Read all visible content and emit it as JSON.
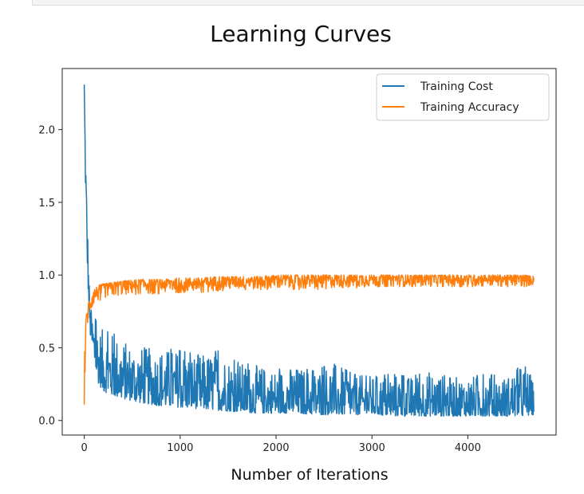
{
  "chart_data": {
    "type": "line",
    "title": "Learning Curves",
    "xlabel": "Number of Iterations",
    "ylabel": "",
    "xlim": [
      -230,
      4920
    ],
    "ylim": [
      -0.1,
      2.42
    ],
    "xticks": [
      0,
      1000,
      2000,
      3000,
      4000
    ],
    "xtick_labels": [
      "0",
      "1000",
      "2000",
      "3000",
      "4000"
    ],
    "yticks": [
      0.0,
      0.5,
      1.0,
      1.5,
      2.0
    ],
    "ytick_labels": [
      "0.0",
      "0.5",
      "1.0",
      "1.5",
      "2.0"
    ],
    "grid": false,
    "legend_position": "top-right",
    "series": [
      {
        "name": "Training Cost",
        "color": "#1f77b4",
        "x": [
          0,
          10,
          20,
          40,
          60,
          80,
          100,
          150,
          200,
          300,
          400,
          600,
          800,
          1000,
          1200,
          1400,
          1600,
          1800,
          2000,
          2200,
          2400,
          2600,
          2800,
          3000,
          3200,
          3400,
          3600,
          3800,
          4000,
          4200,
          4400,
          4600,
          4690
        ],
        "low": [
          2.3,
          1.7,
          1.3,
          0.9,
          0.6,
          0.5,
          0.4,
          0.25,
          0.2,
          0.17,
          0.15,
          0.12,
          0.1,
          0.09,
          0.08,
          0.07,
          0.06,
          0.05,
          0.05,
          0.05,
          0.04,
          0.04,
          0.04,
          0.04,
          0.03,
          0.03,
          0.03,
          0.03,
          0.03,
          0.03,
          0.03,
          0.03,
          0.04
        ],
        "high": [
          2.31,
          2.0,
          1.8,
          1.2,
          0.8,
          0.75,
          0.72,
          0.65,
          0.62,
          0.6,
          0.55,
          0.5,
          0.5,
          0.48,
          0.45,
          0.48,
          0.4,
          0.38,
          0.35,
          0.37,
          0.34,
          0.4,
          0.32,
          0.3,
          0.32,
          0.3,
          0.34,
          0.3,
          0.3,
          0.32,
          0.3,
          0.4,
          0.25
        ]
      },
      {
        "name": "Training Accuracy",
        "color": "#ff7f0e",
        "x": [
          0,
          10,
          20,
          40,
          60,
          80,
          100,
          150,
          200,
          300,
          400,
          600,
          800,
          1000,
          1200,
          1400,
          1600,
          1800,
          2000,
          2200,
          2400,
          2600,
          2800,
          3000,
          3200,
          3400,
          3600,
          3800,
          4000,
          4200,
          4400,
          4600,
          4690
        ],
        "low": [
          0.11,
          0.3,
          0.55,
          0.68,
          0.72,
          0.75,
          0.8,
          0.82,
          0.84,
          0.85,
          0.86,
          0.87,
          0.87,
          0.88,
          0.88,
          0.89,
          0.9,
          0.9,
          0.9,
          0.9,
          0.9,
          0.91,
          0.91,
          0.92,
          0.92,
          0.92,
          0.92,
          0.92,
          0.92,
          0.92,
          0.92,
          0.92,
          0.93
        ],
        "high": [
          0.45,
          0.6,
          0.72,
          0.8,
          0.85,
          0.88,
          0.9,
          0.93,
          0.94,
          0.95,
          0.96,
          0.97,
          0.97,
          0.98,
          0.98,
          0.99,
          0.99,
          0.99,
          1.0,
          1.0,
          1.0,
          1.0,
          1.0,
          1.0,
          1.0,
          1.0,
          1.0,
          1.0,
          1.0,
          1.0,
          1.0,
          1.0,
          0.99
        ]
      }
    ]
  }
}
